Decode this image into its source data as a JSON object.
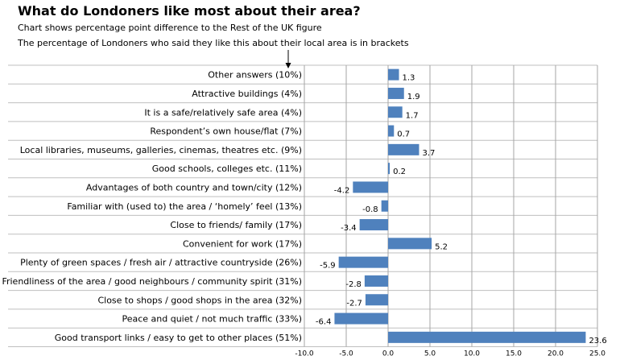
{
  "header": {
    "title": "What do Londoners like most about their area?",
    "subtitle": "Chart shows percentage point difference to the Rest of the UK figure",
    "note": "The percentage of Londoners who said they like this about their local area is in brackets"
  },
  "chart_data": {
    "type": "bar",
    "orientation": "horizontal",
    "categories": [
      "Other answers (10%)",
      "Attractive buildings (4%)",
      "It is a safe/relatively safe area (4%)",
      "Respondent’s own house/flat (7%)",
      "Local libraries, museums, galleries, cinemas, theatres etc. (9%)",
      "Good schools, colleges etc. (11%)",
      "Advantages of both country and town/city (12%)",
      "Familiar with (used to) the area / ‘homely’ feel (13%)",
      "Close to friends/ family (17%)",
      "Convenient for work (17%)",
      "Plenty of green spaces / fresh air / attractive countryside (26%)",
      "Friendliness of the area / good neighbours / community spirit (31%)",
      "Close to shops / good shops in the area (32%)",
      "Peace and quiet / not much traffic (33%)",
      "Good transport links / easy to get to other places (51%)"
    ],
    "values": [
      1.3,
      1.9,
      1.7,
      0.7,
      3.7,
      0.2,
      -4.2,
      -0.8,
      -3.4,
      5.2,
      -5.9,
      -2.8,
      -2.7,
      -6.4,
      23.6
    ],
    "data_labels": [
      "1.3",
      "1.9",
      "1.7",
      "0.7",
      "3.7",
      "0.2",
      "-4.2",
      "-0.8",
      "-3.4",
      "5.2",
      "-5.9",
      "-2.8",
      "-2.7",
      "-6.4",
      "23.6"
    ],
    "xlim": [
      -10,
      25
    ],
    "xticks": [
      -10,
      -5,
      0,
      5,
      10,
      15,
      20,
      25
    ],
    "xtick_labels": [
      "-10.0",
      "-5.0",
      "0.0",
      "5.0",
      "10.0",
      "15.0",
      "20.0",
      "25.0"
    ],
    "grid": "vertical",
    "bar_color": "#4f81bd",
    "grid_color": "#a6a6a6"
  }
}
